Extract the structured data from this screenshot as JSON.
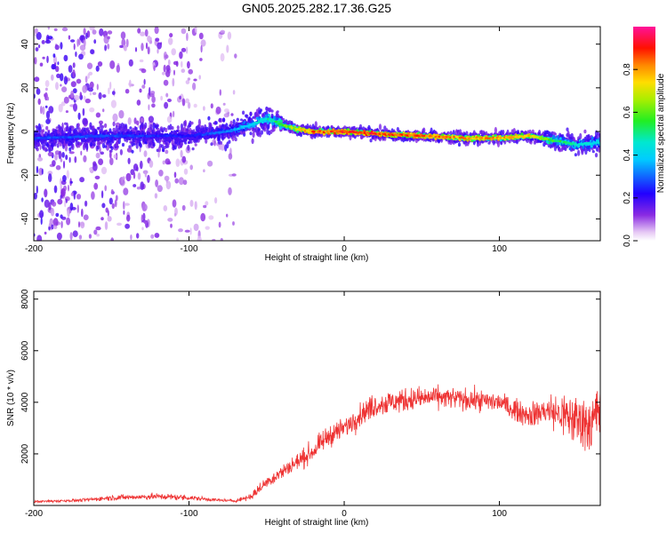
{
  "figure": {
    "title": "GN05.2025.282.17.36.G25"
  },
  "chart_data": [
    {
      "type": "heatmap",
      "title": "GN05.2025.282.17.36.G25",
      "xlabel": "Height of straight line (km)",
      "ylabel": "Frequency (Hz)",
      "xlim": [
        -200,
        165
      ],
      "ylim": [
        -50,
        48
      ],
      "x_ticks": [
        -200,
        -100,
        0,
        100
      ],
      "x_tick_labels": [
        "-200",
        "-100",
        "0",
        "100"
      ],
      "y_ticks": [
        -40,
        -20,
        0,
        20,
        40
      ],
      "y_tick_labels": [
        "-40",
        "-20",
        "0",
        "20",
        "40"
      ],
      "colorbar": {
        "label": "Normalized spectral amplitude",
        "range": [
          0,
          1
        ],
        "ticks": [
          0.0,
          0.2,
          0.4,
          0.6,
          0.8
        ],
        "tick_labels": [
          "0.0",
          "0.2",
          "0.4",
          "0.6",
          "0.8"
        ],
        "colormap": "rainbow (white-purple-blue-cyan-green-yellow-red-magenta)"
      },
      "ridge": {
        "x": [
          -200,
          -150,
          -100,
          -75,
          -60,
          -50,
          -40,
          -30,
          -20,
          0,
          20,
          50,
          80,
          100,
          120,
          135,
          150,
          165
        ],
        "frequency": [
          -3,
          -2,
          -2,
          0,
          3,
          6,
          3,
          1,
          0,
          0,
          -1,
          -2,
          -3,
          -3,
          -2,
          -4,
          -6,
          -5
        ],
        "peak_amplitude": [
          0.3,
          0.3,
          0.25,
          0.35,
          0.45,
          0.5,
          0.6,
          0.75,
          0.9,
          0.95,
          0.95,
          0.9,
          0.85,
          0.85,
          0.8,
          0.6,
          0.5,
          0.45
        ]
      },
      "background_scatter_extent_x": [
        -200,
        -70
      ],
      "grid": false,
      "legend": "colorbar-right"
    },
    {
      "type": "line",
      "xlabel": "Height of straight line (km)",
      "ylabel": "SNR (10 * v/v)",
      "xlim": [
        -200,
        165
      ],
      "ylim": [
        0,
        8300
      ],
      "x_ticks": [
        -200,
        -100,
        0,
        100
      ],
      "x_tick_labels": [
        "-200",
        "-100",
        "0",
        "100"
      ],
      "y_ticks": [
        2000,
        4000,
        6000,
        8000
      ],
      "y_tick_labels": [
        "2000",
        "4000",
        "6000",
        "8000"
      ],
      "series": [
        {
          "color": "#ee3333",
          "envelope": {
            "x": [
              -200,
              -170,
              -150,
              -120,
              -100,
              -80,
              -70,
              -60,
              -50,
              -40,
              -30,
              -20,
              -10,
              0,
              10,
              20,
              30,
              40,
              60,
              80,
              100,
              110,
              120,
              130,
              140,
              150,
              160,
              165
            ],
            "mean": [
              150,
              200,
              300,
              350,
              300,
              200,
              180,
              350,
              900,
              1300,
              1700,
              2100,
              2700,
              3000,
              3500,
              3900,
              4000,
              4100,
              4200,
              4100,
              4000,
              3700,
              3500,
              3700,
              3500,
              3300,
              3200,
              3800
            ],
            "spread": [
              80,
              100,
              180,
              200,
              180,
              100,
              90,
              250,
              400,
              500,
              600,
              650,
              700,
              700,
              750,
              800,
              800,
              800,
              700,
              700,
              700,
              700,
              800,
              1000,
              1500,
              1800,
              2000,
              2500
            ]
          }
        }
      ],
      "grid": false,
      "legend": "none"
    }
  ],
  "colors": {
    "line": "#ee3333",
    "axis": "#000000",
    "background": "#ffffff"
  }
}
